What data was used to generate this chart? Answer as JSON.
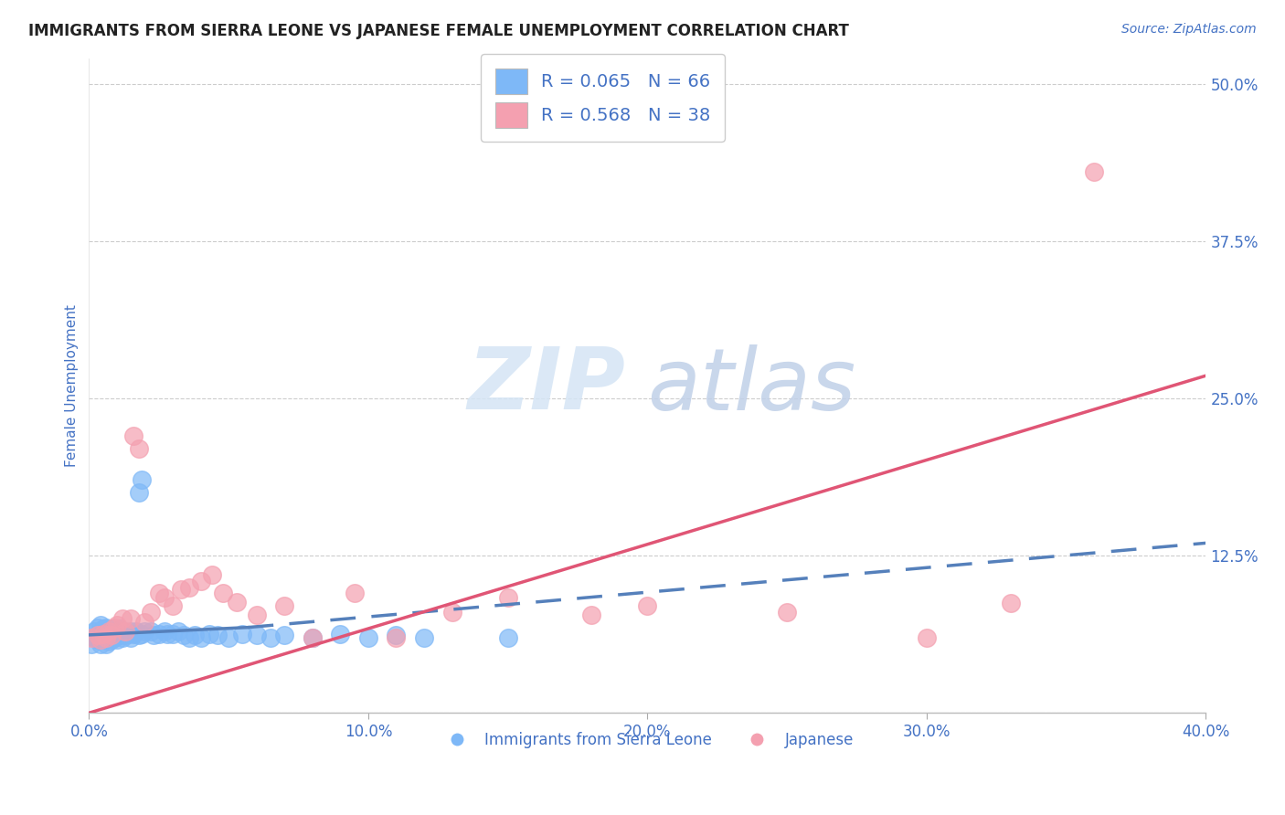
{
  "title": "IMMIGRANTS FROM SIERRA LEONE VS JAPANESE FEMALE UNEMPLOYMENT CORRELATION CHART",
  "source": "Source: ZipAtlas.com",
  "ylabel": "Female Unemployment",
  "xlim": [
    0.0,
    0.4
  ],
  "ylim": [
    0.0,
    0.52
  ],
  "yticks": [
    0.0,
    0.125,
    0.25,
    0.375,
    0.5
  ],
  "ytick_labels": [
    "",
    "12.5%",
    "25.0%",
    "37.5%",
    "50.0%"
  ],
  "xticks": [
    0.0,
    0.1,
    0.2,
    0.3,
    0.4
  ],
  "xtick_labels": [
    "0.0%",
    "10.0%",
    "20.0%",
    "30.0%",
    "40.0%"
  ],
  "legend_label1": "Immigrants from Sierra Leone",
  "legend_label2": "Japanese",
  "r1": 0.065,
  "n1": 66,
  "r2": 0.568,
  "n2": 38,
  "color_blue": "#7EB8F7",
  "color_pink": "#F4A0B0",
  "color_blue_line": "#5580BB",
  "color_pink_line": "#E05575",
  "color_text": "#4472C4",
  "watermark_zip": "ZIP",
  "watermark_atlas": "atlas",
  "blue_scatter_x": [
    0.001,
    0.002,
    0.002,
    0.003,
    0.003,
    0.003,
    0.004,
    0.004,
    0.004,
    0.004,
    0.005,
    0.005,
    0.005,
    0.006,
    0.006,
    0.006,
    0.006,
    0.007,
    0.007,
    0.007,
    0.008,
    0.008,
    0.008,
    0.009,
    0.009,
    0.01,
    0.01,
    0.011,
    0.011,
    0.012,
    0.012,
    0.013,
    0.014,
    0.015,
    0.015,
    0.016,
    0.017,
    0.018,
    0.019,
    0.02,
    0.022,
    0.023,
    0.025,
    0.027,
    0.028,
    0.03,
    0.032,
    0.034,
    0.036,
    0.038,
    0.04,
    0.043,
    0.046,
    0.05,
    0.055,
    0.06,
    0.065,
    0.07,
    0.08,
    0.09,
    0.1,
    0.11,
    0.12,
    0.15,
    0.018,
    0.019
  ],
  "blue_scatter_y": [
    0.055,
    0.06,
    0.065,
    0.058,
    0.062,
    0.068,
    0.055,
    0.06,
    0.065,
    0.07,
    0.058,
    0.062,
    0.067,
    0.055,
    0.06,
    0.063,
    0.068,
    0.057,
    0.062,
    0.066,
    0.058,
    0.063,
    0.067,
    0.06,
    0.065,
    0.058,
    0.063,
    0.062,
    0.067,
    0.06,
    0.065,
    0.062,
    0.063,
    0.06,
    0.065,
    0.063,
    0.065,
    0.062,
    0.063,
    0.065,
    0.065,
    0.062,
    0.063,
    0.065,
    0.063,
    0.063,
    0.065,
    0.062,
    0.06,
    0.062,
    0.06,
    0.063,
    0.062,
    0.06,
    0.063,
    0.062,
    0.06,
    0.062,
    0.06,
    0.063,
    0.06,
    0.062,
    0.06,
    0.06,
    0.175,
    0.185
  ],
  "pink_scatter_x": [
    0.001,
    0.003,
    0.004,
    0.005,
    0.006,
    0.007,
    0.008,
    0.009,
    0.01,
    0.012,
    0.013,
    0.015,
    0.016,
    0.018,
    0.02,
    0.022,
    0.025,
    0.027,
    0.03,
    0.033,
    0.036,
    0.04,
    0.044,
    0.048,
    0.053,
    0.06,
    0.07,
    0.08,
    0.095,
    0.11,
    0.13,
    0.15,
    0.18,
    0.2,
    0.25,
    0.3,
    0.33,
    0.36
  ],
  "pink_scatter_y": [
    0.06,
    0.062,
    0.058,
    0.063,
    0.06,
    0.065,
    0.062,
    0.068,
    0.07,
    0.075,
    0.065,
    0.075,
    0.22,
    0.21,
    0.072,
    0.08,
    0.095,
    0.092,
    0.085,
    0.098,
    0.1,
    0.105,
    0.11,
    0.095,
    0.088,
    0.078,
    0.085,
    0.06,
    0.095,
    0.06,
    0.08,
    0.092,
    0.078,
    0.085,
    0.08,
    0.06,
    0.087,
    0.43
  ],
  "blue_trendline_x": [
    0.0,
    0.057,
    0.4
  ],
  "blue_trendline_y": [
    0.062,
    0.068,
    0.135
  ],
  "pink_trendline_x": [
    0.0,
    0.4
  ],
  "pink_trendline_y": [
    0.0,
    0.268
  ]
}
